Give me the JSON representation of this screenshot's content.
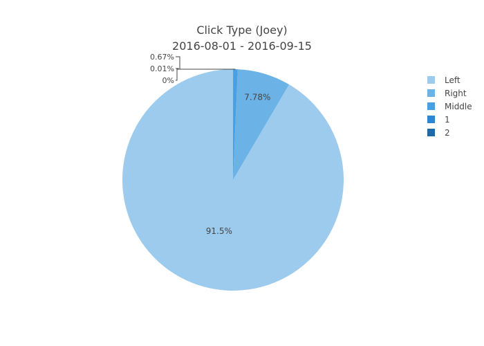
{
  "chart_data": {
    "type": "pie",
    "title": "Click Type (Joey)",
    "subtitle": "2016-08-01 - 2016-09-15",
    "labels": [
      "Left",
      "Right",
      "Middle",
      "1",
      "2"
    ],
    "values": [
      91.5,
      7.78,
      0.67,
      0.01,
      0.0
    ],
    "value_labels": [
      "91.5%",
      "7.78%",
      "0.67%",
      "0.01%",
      "0%"
    ],
    "colors": [
      "#9ccbee",
      "#6bb3e6",
      "#4a9fe0",
      "#2d86cf",
      "#1f6aa6"
    ],
    "direction": "counterclockwise",
    "start_angle": "top",
    "legend_position": "right"
  }
}
